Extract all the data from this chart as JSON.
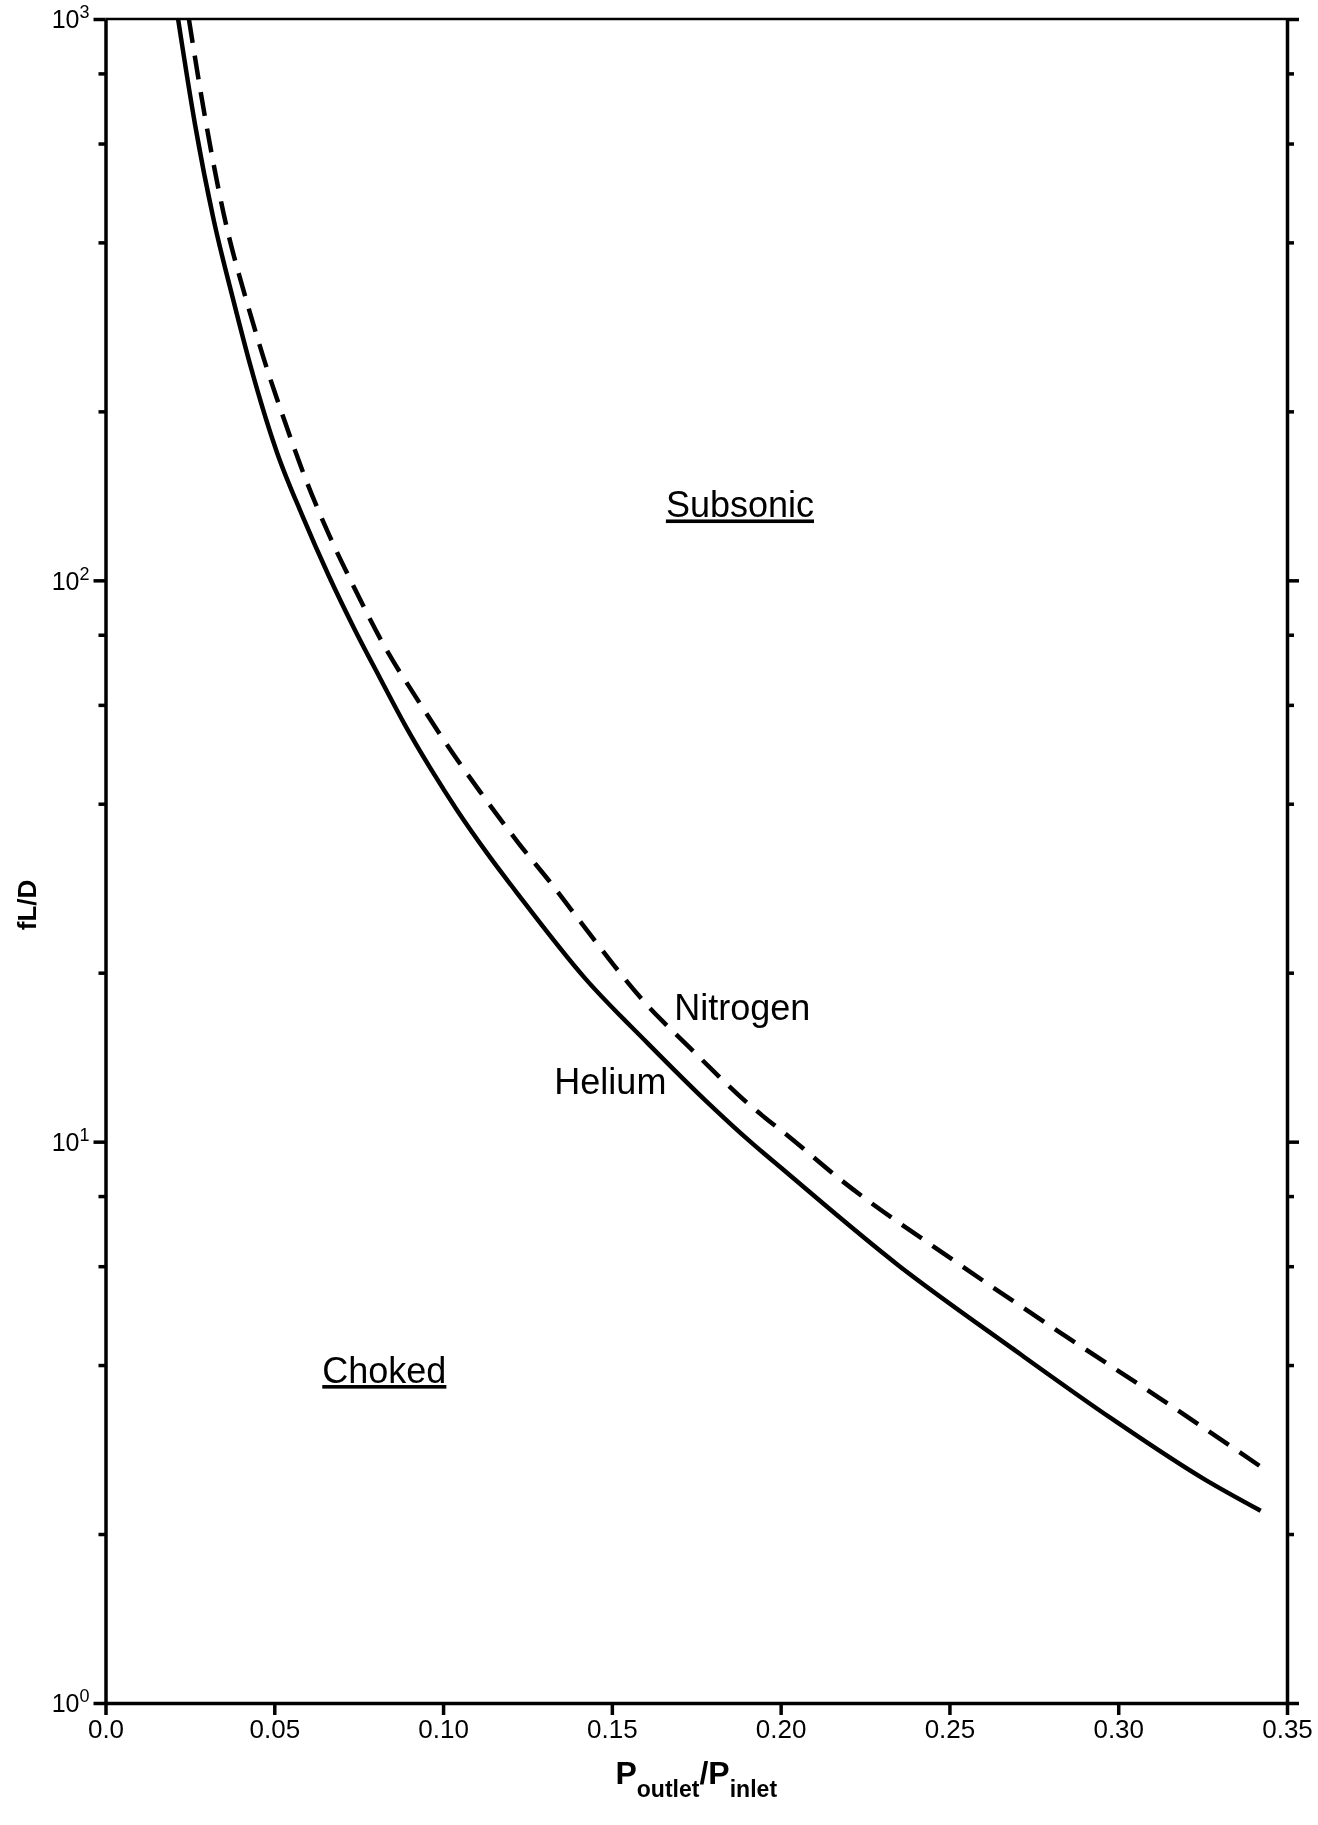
{
  "chart_data": {
    "type": "line",
    "xlabel": "P$_{outlet}$/P$_{inlet}$",
    "ylabel": "fL/D",
    "annotations": [
      "Subsonic",
      "Choked"
    ],
    "series": [
      {
        "name": "Helium",
        "color": "#000000",
        "line_style": "solid",
        "x": [
          0.0215,
          0.0265,
          0.032,
          0.0379,
          0.0432,
          0.0508,
          0.0584,
          0.0661,
          0.0737,
          0.0813,
          0.0889,
          0.0965,
          0.1041,
          0.1133,
          0.1224,
          0.1422,
          0.1605,
          0.178,
          0.191,
          0.2009,
          0.2352,
          0.2682,
          0.2984,
          0.3257,
          0.3422
        ],
        "values": [
          1000,
          650,
          440,
          315,
          238,
          169,
          130,
          102,
          82,
          67,
          55,
          46,
          39,
          32.5,
          27.5,
          19.5,
          15,
          11.8,
          10,
          8.9,
          6.0,
          4.3,
          3.2,
          2.5,
          2.2
        ]
      },
      {
        "name": "Nitrogen",
        "color": "#000000",
        "line_style": "dashed",
        "x": [
          0.0247,
          0.0289,
          0.035,
          0.0425,
          0.047,
          0.0531,
          0.0592,
          0.0661,
          0.0737,
          0.0828,
          0.0919,
          0.1011,
          0.111,
          0.1224,
          0.1323,
          0.141,
          0.1605,
          0.1726,
          0.191,
          0.2034,
          0.2173,
          0.2503,
          0.2845,
          0.312,
          0.3437
        ],
        "values": [
          1000,
          700,
          450,
          304,
          247,
          192,
          152,
          121,
          97,
          76,
          62,
          51,
          42,
          34,
          28.7,
          24.5,
          17.5,
          14.8,
          11.6,
          10.1,
          8.6,
          6.2,
          4.5,
          3.5,
          2.6
        ]
      }
    ],
    "xlim": [
      0,
      0.35
    ],
    "xticks": [
      {
        "value": 0,
        "label": "0.0"
      },
      0.05,
      {
        "value": 0.1,
        "label": "0.10"
      },
      0.15,
      {
        "value": 0.2,
        "label": "0.20"
      },
      0.25,
      {
        "value": 0.3,
        "label": "0.30"
      },
      0.35
    ],
    "ylim": [
      1,
      1000
    ],
    "yticks": [
      {
        "value": 1,
        "label": "10$^{0}$"
      },
      {
        "value": 2,
        "label": null
      },
      {
        "value": 4,
        "label": null
      },
      {
        "value": 6,
        "label": null
      },
      {
        "value": 8,
        "label": null
      },
      {
        "value": 10,
        "label": "10$^{1}$"
      },
      {
        "value": 20,
        "label": null
      },
      {
        "value": 40,
        "label": null
      },
      {
        "value": 60,
        "label": null
      },
      {
        "value": 80,
        "label": null
      },
      {
        "value": 100,
        "label": "10$^{2}$"
      },
      {
        "value": 200,
        "label": null
      },
      {
        "value": 400,
        "label": null
      },
      {
        "value": 600,
        "label": null
      },
      {
        "value": 800,
        "label": null
      },
      {
        "value": 1000,
        "label": "10$^{3}$"
      }
    ],
    "log": "y"
  }
}
